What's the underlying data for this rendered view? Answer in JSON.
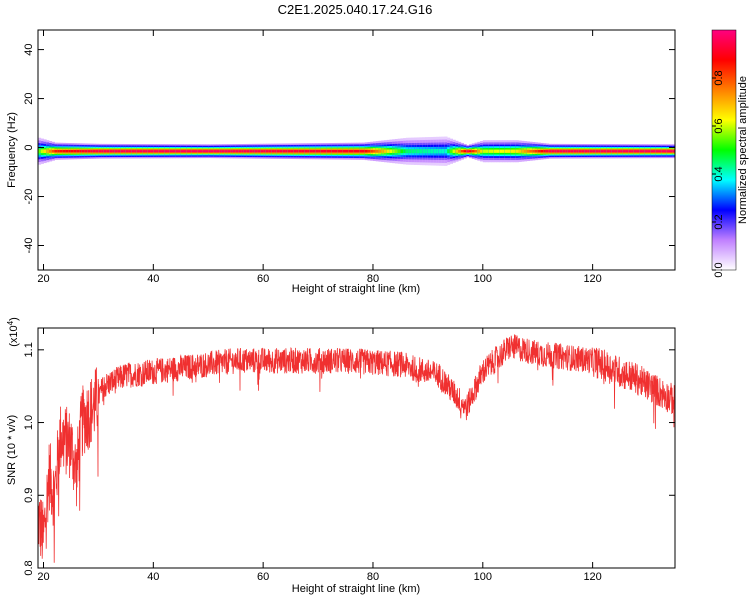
{
  "title": "C2E1.2025.040.17.24.G16",
  "chart_data": [
    {
      "type": "heatmap",
      "xlabel": "Height of straight line (km)",
      "ylabel": "Frequency (Hz)",
      "xlim": [
        19,
        135
      ],
      "ylim": [
        -50,
        48
      ],
      "x_ticks": [
        20,
        40,
        60,
        80,
        100,
        120
      ],
      "y_ticks": [
        -40,
        -20,
        0,
        20,
        40
      ],
      "band_center_hz": -1.5,
      "band_profile": [
        {
          "x": 19,
          "halfwidth_hz": 5.5,
          "amp": 0.55
        },
        {
          "x": 22,
          "halfwidth_hz": 3.5,
          "amp": 0.85
        },
        {
          "x": 30,
          "halfwidth_hz": 3.0,
          "amp": 0.95
        },
        {
          "x": 50,
          "halfwidth_hz": 2.8,
          "amp": 0.97
        },
        {
          "x": 78,
          "halfwidth_hz": 3.5,
          "amp": 0.9
        },
        {
          "x": 86,
          "halfwidth_hz": 5.5,
          "amp": 0.45
        },
        {
          "x": 93,
          "halfwidth_hz": 6.0,
          "amp": 0.4
        },
        {
          "x": 97,
          "halfwidth_hz": 2.5,
          "amp": 0.95
        },
        {
          "x": 100,
          "halfwidth_hz": 4.5,
          "amp": 0.6
        },
        {
          "x": 106,
          "halfwidth_hz": 4.5,
          "amp": 0.65
        },
        {
          "x": 112,
          "halfwidth_hz": 3.0,
          "amp": 0.95
        },
        {
          "x": 135,
          "halfwidth_hz": 2.8,
          "amp": 0.97
        }
      ],
      "colorbar": {
        "label": "Normalized spectral amplitude",
        "range": [
          0,
          1
        ],
        "ticks": [
          0.0,
          0.2,
          0.4,
          0.6,
          0.8
        ],
        "tick_labels": [
          "0.0",
          "0.2",
          "0.4",
          "0.6",
          "0.8"
        ],
        "colors": [
          "#ffffff",
          "#c080ff",
          "#0000ff",
          "#00ffff",
          "#00ff00",
          "#ffff00",
          "#ff8000",
          "#ff0000",
          "#ff0080"
        ]
      }
    },
    {
      "type": "line",
      "xlabel": "Height of straight line (km)",
      "ylabel": "SNR (10 * v/v)",
      "y_multiplier": "(x10",
      "y_multiplier_exp": "4",
      "y_multiplier_close": ")",
      "xlim": [
        19,
        135
      ],
      "ylim": [
        0.8,
        1.13
      ],
      "x_ticks": [
        20,
        40,
        60,
        80,
        100,
        120
      ],
      "y_ticks": [
        0.8,
        0.9,
        1.0,
        1.1
      ],
      "y_tick_labels": [
        "0.8",
        "0.9",
        "1.0",
        "1.1"
      ],
      "series_color": "#f03030",
      "trend": [
        {
          "x": 19,
          "y": 0.87
        },
        {
          "x": 20,
          "y": 0.84
        },
        {
          "x": 21,
          "y": 0.93
        },
        {
          "x": 22,
          "y": 0.9
        },
        {
          "x": 23,
          "y": 0.98
        },
        {
          "x": 25,
          "y": 0.97
        },
        {
          "x": 26,
          "y": 0.93
        },
        {
          "x": 27,
          "y": 1.0
        },
        {
          "x": 29,
          "y": 1.02
        },
        {
          "x": 31,
          "y": 1.05
        },
        {
          "x": 35,
          "y": 1.065
        },
        {
          "x": 45,
          "y": 1.075
        },
        {
          "x": 55,
          "y": 1.085
        },
        {
          "x": 65,
          "y": 1.085
        },
        {
          "x": 75,
          "y": 1.085
        },
        {
          "x": 85,
          "y": 1.08
        },
        {
          "x": 92,
          "y": 1.065
        },
        {
          "x": 97,
          "y": 1.02
        },
        {
          "x": 100,
          "y": 1.07
        },
        {
          "x": 105,
          "y": 1.105
        },
        {
          "x": 110,
          "y": 1.095
        },
        {
          "x": 120,
          "y": 1.085
        },
        {
          "x": 128,
          "y": 1.06
        },
        {
          "x": 135,
          "y": 1.03
        }
      ]
    }
  ]
}
